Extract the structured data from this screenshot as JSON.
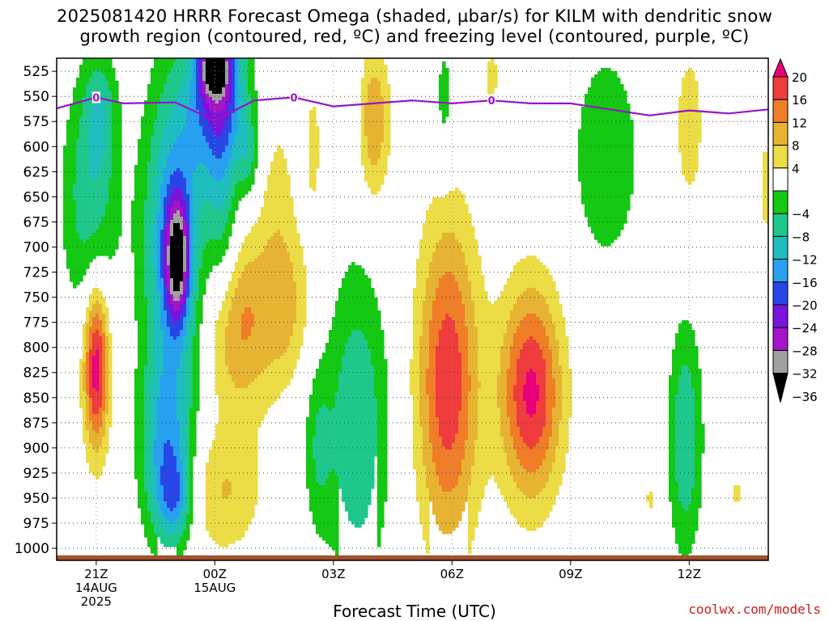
{
  "title": {
    "line1": "2025081420 HRRR Forecast Omega (shaded, µbar/s) for KILM with dendritic snow",
    "line2": "growth region (contoured, red, ºC) and freezing level (contoured, purple, ºC)"
  },
  "credit": "coolwx.com/models",
  "chart_data": {
    "type": "heatmap",
    "xlabel": "Forecast Time (UTC)",
    "x_ticks": [
      {
        "hour": 1,
        "lines": [
          "21Z",
          "14AUG",
          "2025"
        ]
      },
      {
        "hour": 4,
        "lines": [
          "00Z",
          "15AUG"
        ]
      },
      {
        "hour": 7,
        "lines": [
          "03Z"
        ]
      },
      {
        "hour": 10,
        "lines": [
          "06Z"
        ]
      },
      {
        "hour": 13,
        "lines": [
          "09Z"
        ]
      },
      {
        "hour": 16,
        "lines": [
          "12Z"
        ]
      }
    ],
    "xlim_hours": [
      0,
      18
    ],
    "ylabel": "",
    "y_ticks": [
      525,
      550,
      575,
      600,
      625,
      650,
      675,
      700,
      725,
      750,
      775,
      800,
      825,
      850,
      875,
      900,
      925,
      950,
      975,
      1000
    ],
    "ylim_hPa": [
      512,
      1012
    ],
    "colorbar": {
      "labels": [
        "20",
        "16",
        "12",
        "8",
        "4",
        "−4",
        "−8",
        "−12",
        "−16",
        "−20",
        "−24",
        "−28",
        "−32",
        "−36"
      ],
      "bins": [
        {
          "min": 20,
          "color": "#e8007a"
        },
        {
          "min": 16,
          "max": 20,
          "color": "#f03c3c"
        },
        {
          "min": 12,
          "max": 16,
          "color": "#f07d28"
        },
        {
          "min": 8,
          "max": 12,
          "color": "#e6b432"
        },
        {
          "min": 4,
          "max": 8,
          "color": "#ecdc46"
        },
        {
          "min": -4,
          "max": 4,
          "color": "#ffffff"
        },
        {
          "min": -8,
          "max": -4,
          "color": "#14c814"
        },
        {
          "min": -12,
          "max": -8,
          "color": "#1ec88c"
        },
        {
          "min": -16,
          "max": -12,
          "color": "#1ebebe"
        },
        {
          "min": -20,
          "max": -16,
          "color": "#28a0f0"
        },
        {
          "min": -24,
          "max": -20,
          "color": "#2846e6"
        },
        {
          "min": -28,
          "max": -24,
          "color": "#7814dc"
        },
        {
          "min": -32,
          "max": -28,
          "color": "#a514c8"
        },
        {
          "min": -36,
          "max": -32,
          "color": "#a0a0a0"
        },
        {
          "max": -36,
          "color": "#000000"
        }
      ]
    },
    "freezing_level": {
      "color": "#9614c8",
      "label": "0",
      "points": [
        {
          "h": 0.0,
          "p": 562
        },
        {
          "h": 1.0,
          "p": 551
        },
        {
          "h": 1.7,
          "p": 557
        },
        {
          "h": 3.0,
          "p": 556
        },
        {
          "h": 4.0,
          "p": 574
        },
        {
          "h": 5.0,
          "p": 554
        },
        {
          "h": 6.0,
          "p": 551
        },
        {
          "h": 7.0,
          "p": 560
        },
        {
          "h": 8.0,
          "p": 557
        },
        {
          "h": 9.0,
          "p": 554
        },
        {
          "h": 10.0,
          "p": 557
        },
        {
          "h": 11.0,
          "p": 554
        },
        {
          "h": 12.0,
          "p": 557
        },
        {
          "h": 13.0,
          "p": 557
        },
        {
          "h": 14.0,
          "p": 563
        },
        {
          "h": 15.0,
          "p": 569
        },
        {
          "h": 16.0,
          "p": 564
        },
        {
          "h": 17.0,
          "p": 567
        },
        {
          "h": 18.0,
          "p": 563
        }
      ],
      "label_hours": [
        1.0,
        6.0,
        11.0
      ]
    },
    "omega_features": [
      {
        "h": 0.85,
        "p": 650,
        "sh": 0.5,
        "sp": 85,
        "v": -11
      },
      {
        "h": 1.1,
        "p": 565,
        "sh": 0.28,
        "sp": 40,
        "v": -8
      },
      {
        "h": 1.0,
        "p": 818,
        "sh": 0.23,
        "sp": 60,
        "v": 23
      },
      {
        "h": 3.0,
        "p": 695,
        "sh": 0.55,
        "sp": 115,
        "v": -21
      },
      {
        "h": 3.05,
        "p": 712,
        "sh": 0.2,
        "sp": 40,
        "v": -24
      },
      {
        "h": 2.75,
        "p": 905,
        "sh": 0.45,
        "sp": 65,
        "v": -15
      },
      {
        "h": 3.0,
        "p": 950,
        "sh": 0.3,
        "sp": 30,
        "v": -12
      },
      {
        "h": 4.1,
        "p": 545,
        "sh": 0.5,
        "sp": 55,
        "v": -24
      },
      {
        "h": 4.0,
        "p": 520,
        "sh": 0.25,
        "sp": 20,
        "v": -25
      },
      {
        "h": 4.2,
        "p": 670,
        "sh": 0.28,
        "sp": 70,
        "v": -10
      },
      {
        "h": 4.85,
        "p": 610,
        "sh": 0.18,
        "sp": 30,
        "v": -8
      },
      {
        "h": 4.6,
        "p": 775,
        "sh": 0.7,
        "sp": 65,
        "v": 13
      },
      {
        "h": 5.6,
        "p": 660,
        "sh": 0.35,
        "sp": 90,
        "v": 5
      },
      {
        "h": 5.9,
        "p": 760,
        "sh": 0.4,
        "sp": 50,
        "v": 6
      },
      {
        "h": 4.2,
        "p": 945,
        "sh": 0.7,
        "sp": 45,
        "v": 8
      },
      {
        "h": 7.4,
        "p": 560,
        "sh": 0.3,
        "sp": 65,
        "v": -4
      },
      {
        "h": 8.0,
        "p": 575,
        "sh": 0.3,
        "sp": 55,
        "v": 12
      },
      {
        "h": 7.6,
        "p": 880,
        "sh": 0.55,
        "sp": 110,
        "v": -12
      },
      {
        "h": 6.6,
        "p": 900,
        "sh": 0.25,
        "sp": 60,
        "v": -7
      },
      {
        "h": 6.5,
        "p": 600,
        "sh": 0.18,
        "sp": 60,
        "v": 5
      },
      {
        "h": 9.9,
        "p": 835,
        "sh": 0.55,
        "sp": 115,
        "v": 19
      },
      {
        "h": 9.8,
        "p": 555,
        "sh": 0.18,
        "sp": 50,
        "v": -6
      },
      {
        "h": 11.0,
        "p": 530,
        "sh": 0.2,
        "sp": 25,
        "v": 5
      },
      {
        "h": 12.0,
        "p": 845,
        "sh": 0.55,
        "sp": 75,
        "v": 21
      },
      {
        "h": 13.9,
        "p": 610,
        "sh": 0.6,
        "sp": 75,
        "v": -8
      },
      {
        "h": 15.9,
        "p": 890,
        "sh": 0.3,
        "sp": 80,
        "v": -12
      },
      {
        "h": 16.0,
        "p": 580,
        "sh": 0.3,
        "sp": 65,
        "v": 6
      },
      {
        "h": 17.95,
        "p": 640,
        "sh": 0.2,
        "sp": 55,
        "v": 5
      },
      {
        "h": 17.2,
        "p": 945,
        "sh": 0.2,
        "sp": 20,
        "v": 4.5
      },
      {
        "h": 15.0,
        "p": 950,
        "sh": 0.12,
        "sp": 25,
        "v": 4.5
      }
    ],
    "surface": {
      "color": "#a0522d",
      "pressure": 1007
    }
  }
}
